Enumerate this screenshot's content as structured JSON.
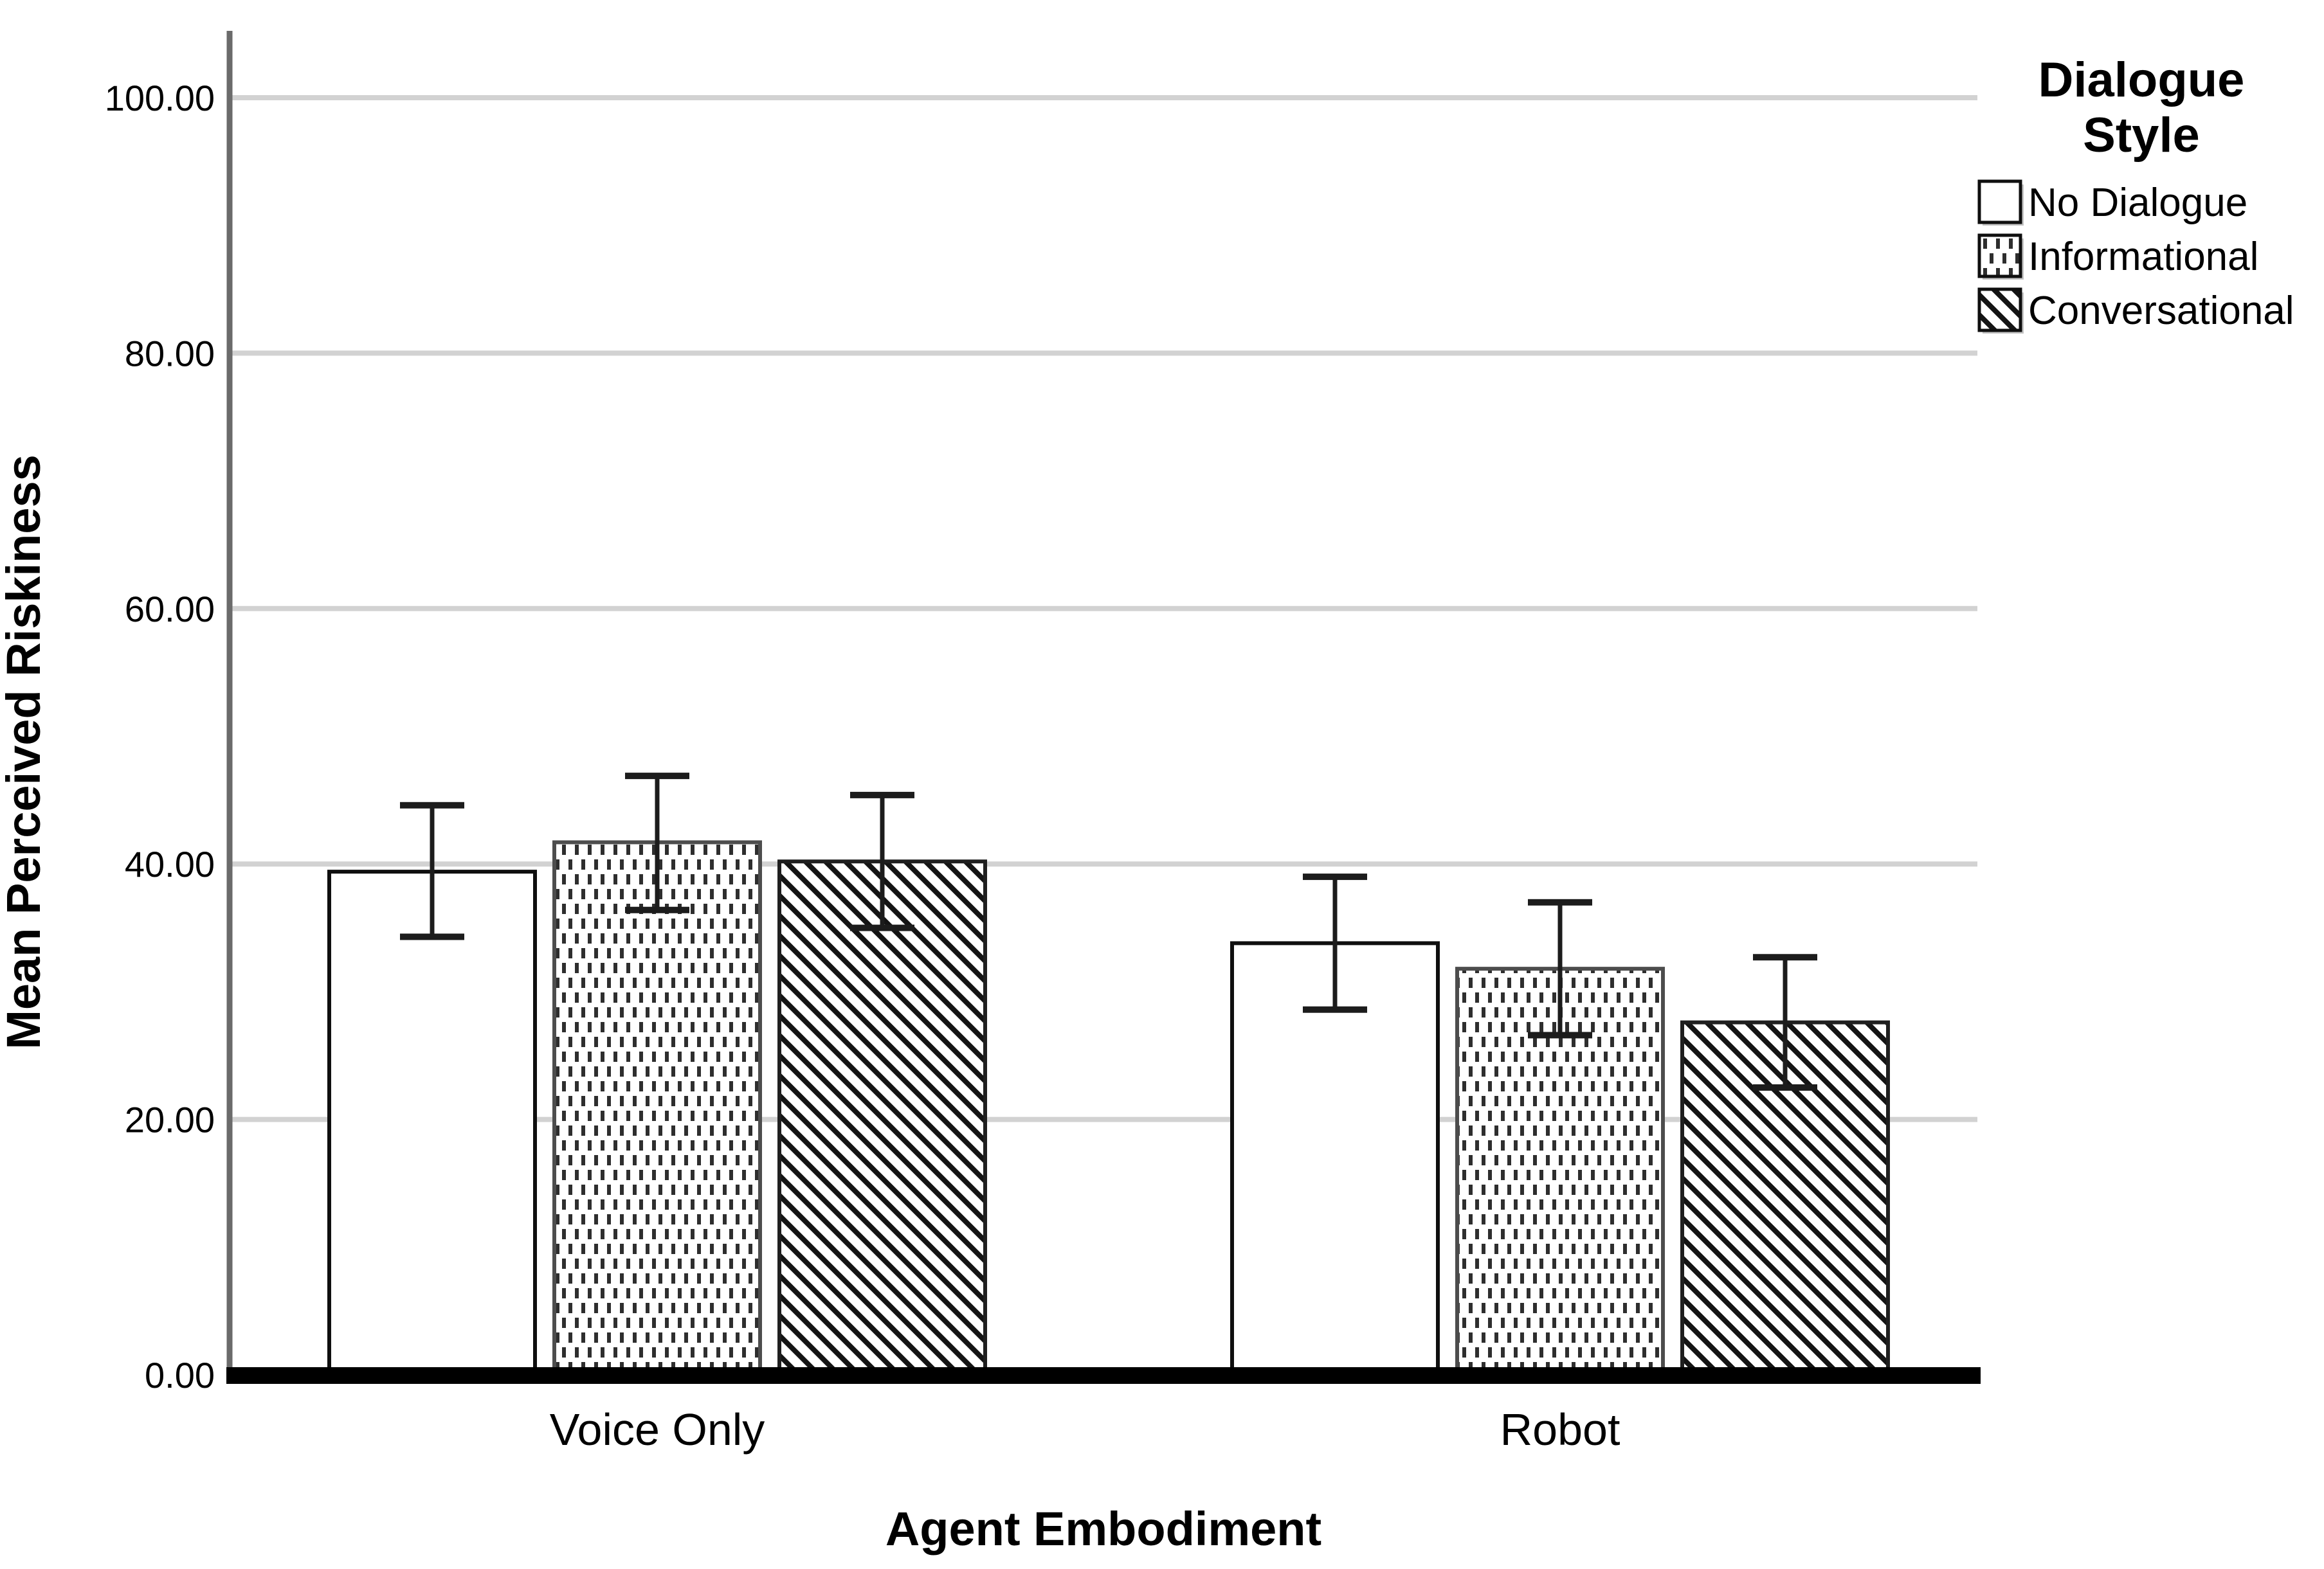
{
  "page": {
    "background": "#ffffff"
  },
  "chart_data": {
    "type": "bar",
    "title": "",
    "xlabel": "Agent Embodiment",
    "ylabel": "Mean Perceived Riskiness",
    "categories": [
      "Voice Only",
      "Robot"
    ],
    "ylim": [
      0,
      105
    ],
    "yticks": [
      0,
      20,
      40,
      60,
      80,
      100
    ],
    "ytick_labels": [
      "0.00",
      "20.00",
      "40.00",
      "60.00",
      "80.00",
      "100.00"
    ],
    "grid": "horizontal",
    "legend": {
      "title_lines": [
        "Dialogue",
        "Style"
      ],
      "position": "outside-top-right"
    },
    "series": [
      {
        "name": "No Dialogue",
        "fill": "plain-white",
        "values": [
          39.4,
          33.8
        ],
        "err_low": [
          34.3,
          28.6
        ],
        "err_high": [
          44.6,
          39.0
        ]
      },
      {
        "name": "Informational",
        "fill": "dotted",
        "values": [
          41.7,
          31.8
        ],
        "err_low": [
          36.4,
          26.6
        ],
        "err_high": [
          46.9,
          37.0
        ]
      },
      {
        "name": "Conversational",
        "fill": "diagonal-hatch",
        "values": [
          40.2,
          27.6
        ],
        "err_low": [
          35.0,
          22.5
        ],
        "err_high": [
          45.4,
          32.7
        ]
      }
    ]
  },
  "colors": {
    "gridline": "#d2d2d2",
    "y_axis_line": "#6b6b6b",
    "x_axis_line": "#000000",
    "bar_fill_base": "#ffffff",
    "pattern_ink": "#2e2e2e",
    "error_bar": "#1c1c1c",
    "text": "#000000",
    "legend_swatch_shadow": "#c4c4c4"
  }
}
